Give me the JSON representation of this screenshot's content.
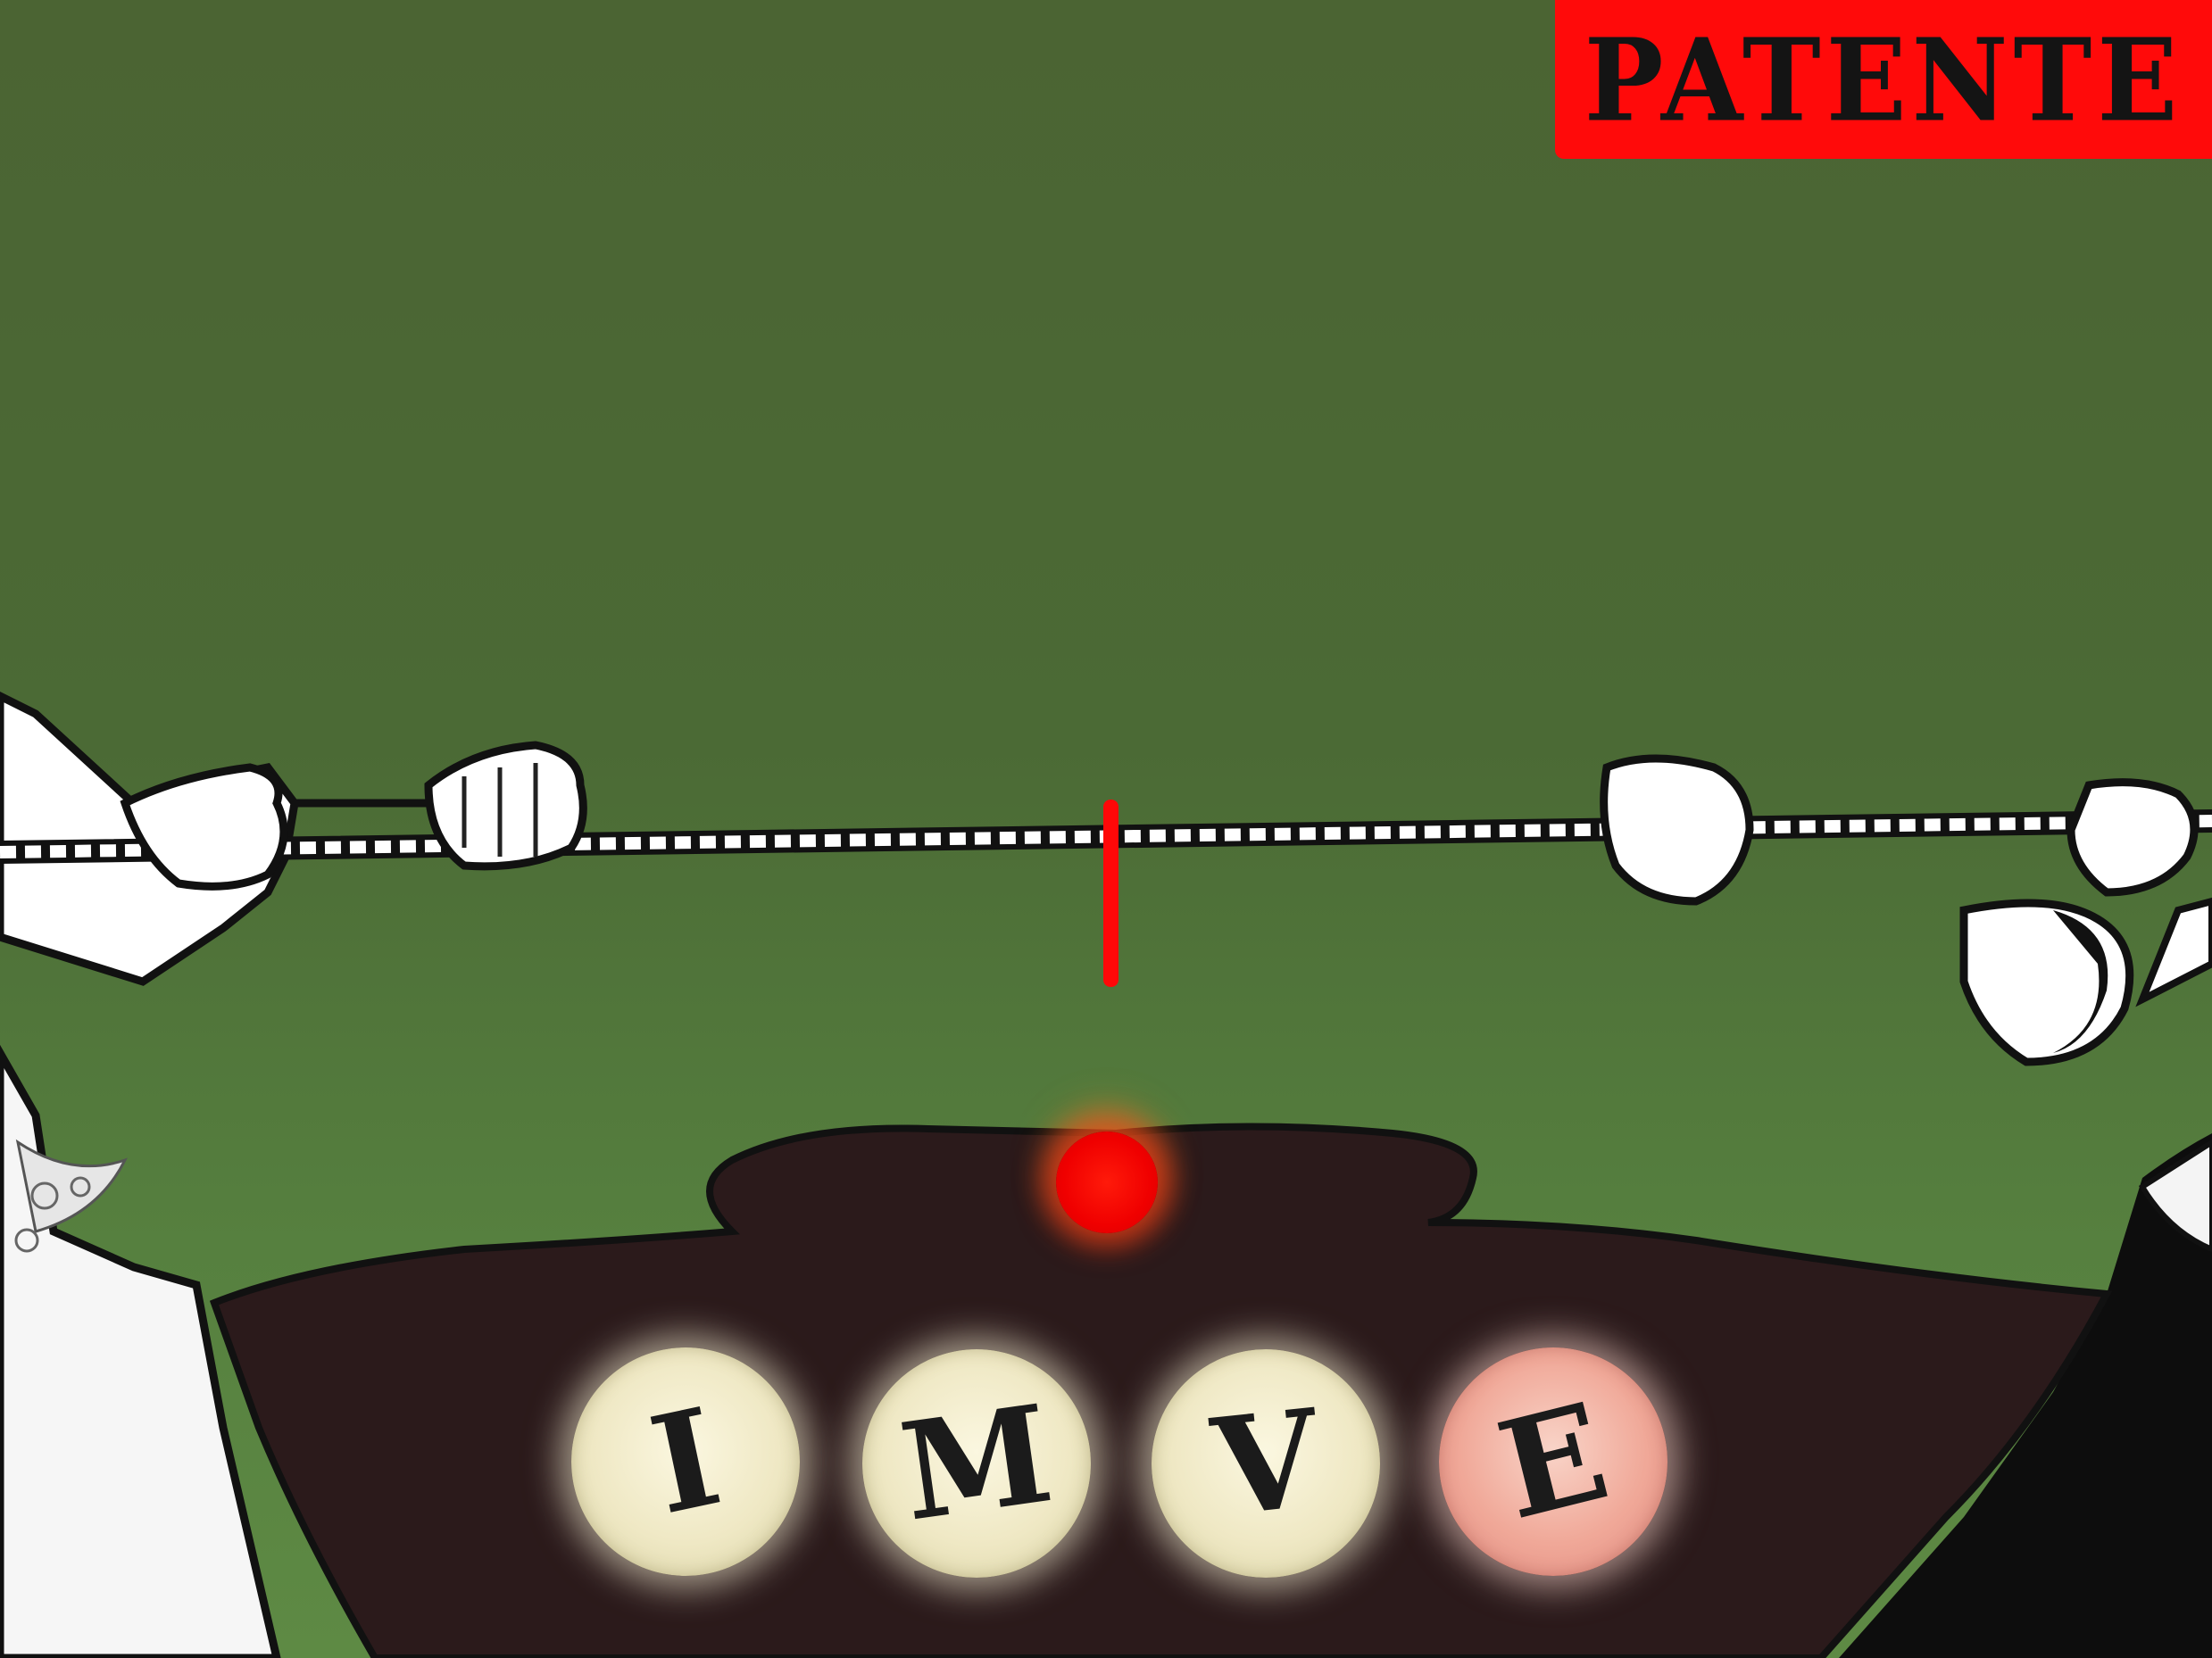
{
  "mode_badge": {
    "label": "PATENTE",
    "color": "#ff0a0a"
  },
  "rope": {
    "pull_position": 0.5,
    "marker_color": "#ff0808"
  },
  "indicator": {
    "color": "#ff0a0a"
  },
  "letter_balls": [
    {
      "letter": "I",
      "state": "normal"
    },
    {
      "letter": "M",
      "state": "normal"
    },
    {
      "letter": "V",
      "state": "normal"
    },
    {
      "letter": "E",
      "state": "highlighted"
    }
  ],
  "colors": {
    "background": "#4b6a35",
    "hair": "#2c1a1b",
    "ball_normal": "#efe8c4",
    "ball_highlighted": "#f0a898"
  }
}
